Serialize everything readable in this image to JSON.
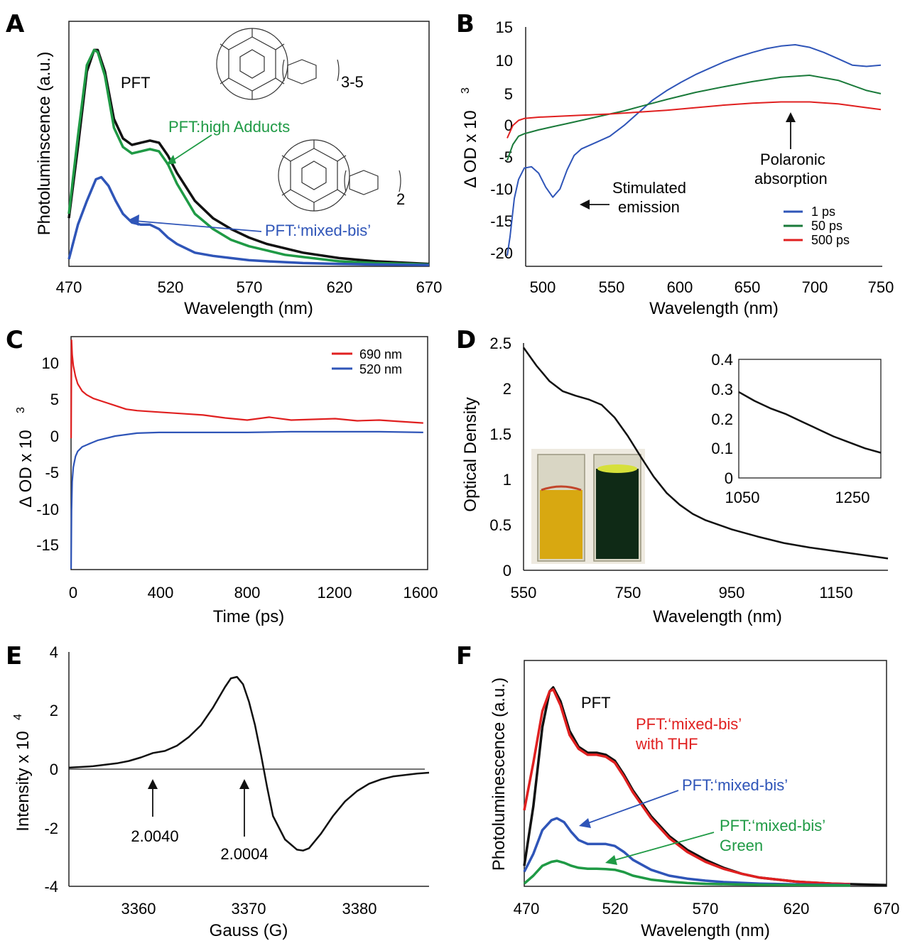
{
  "chart_data": [
    {
      "panel": "A",
      "type": "line",
      "xlabel": "Wavelength (nm)",
      "ylabel": "Photoluminscence (a.u.)",
      "xlim": [
        470,
        670
      ],
      "ylim": [
        0,
        1.1
      ],
      "xticks": [
        "470",
        "520",
        "570",
        "620",
        "670"
      ],
      "series": [
        {
          "name": "PFT",
          "color": "#111111",
          "x": [
            470,
            475,
            480,
            484,
            486,
            490,
            495,
            500,
            505,
            510,
            515,
            520,
            525,
            530,
            540,
            550,
            560,
            570,
            580,
            590,
            600,
            620,
            640,
            660,
            670
          ],
          "y": [
            0.22,
            0.55,
            0.9,
            1.0,
            1.0,
            0.9,
            0.68,
            0.59,
            0.56,
            0.57,
            0.58,
            0.57,
            0.51,
            0.43,
            0.3,
            0.22,
            0.17,
            0.13,
            0.1,
            0.08,
            0.06,
            0.035,
            0.02,
            0.012,
            0.008
          ]
        },
        {
          "name": "PFT:high Adducts",
          "color": "#1f9a45",
          "x": [
            470,
            475,
            480,
            484,
            486,
            490,
            495,
            500,
            505,
            510,
            515,
            520,
            525,
            530,
            540,
            550,
            560,
            570,
            580,
            590,
            600,
            620,
            640,
            660,
            670
          ],
          "y": [
            0.24,
            0.6,
            0.93,
            1.0,
            0.99,
            0.88,
            0.64,
            0.55,
            0.52,
            0.53,
            0.54,
            0.53,
            0.47,
            0.38,
            0.24,
            0.17,
            0.12,
            0.09,
            0.07,
            0.05,
            0.04,
            0.02,
            0.012,
            0.008,
            0.005
          ]
        },
        {
          "name": "PFT:'mixed-bis'",
          "color": "#2f55b8",
          "x": [
            470,
            475,
            480,
            485,
            488,
            492,
            496,
            500,
            505,
            510,
            515,
            520,
            525,
            530,
            540,
            550,
            560,
            570,
            580,
            600,
            620,
            640,
            670
          ],
          "y": [
            0.03,
            0.19,
            0.3,
            0.4,
            0.41,
            0.37,
            0.3,
            0.24,
            0.2,
            0.19,
            0.19,
            0.17,
            0.13,
            0.1,
            0.06,
            0.045,
            0.035,
            0.025,
            0.02,
            0.012,
            0.008,
            0.005,
            0.003
          ]
        }
      ],
      "annotations": [
        "PFT",
        "PFT:high Adducts",
        "PFT:‘mixed-bis’",
        "3-5",
        "2"
      ]
    },
    {
      "panel": "B",
      "type": "line",
      "xlabel": "Wavelength (nm)",
      "ylabel": "Δ OD x 10",
      "ylabel_superscript": "3",
      "xlim": [
        490,
        750
      ],
      "ylim": [
        -21,
        15
      ],
      "xticks": [
        "500",
        "550",
        "600",
        "650",
        "700",
        "750"
      ],
      "yticks": [
        "15",
        "10",
        "5",
        "0",
        "-5",
        "-10",
        "-15",
        "-20"
      ],
      "series": [
        {
          "name": "1 ps",
          "color": "#2f55b8",
          "x": [
            488,
            490,
            493,
            496,
            500,
            505,
            510,
            515,
            520,
            525,
            530,
            535,
            540,
            550,
            560,
            570,
            580,
            590,
            600,
            610,
            620,
            630,
            640,
            650,
            660,
            670,
            680,
            690,
            700,
            710,
            720,
            730,
            740,
            750
          ],
          "y": [
            -21,
            -18,
            -12,
            -9,
            -7.2,
            -7.0,
            -8.0,
            -10.2,
            -11.8,
            -10.5,
            -7.5,
            -5.2,
            -4.2,
            -3.2,
            -2.2,
            -0.5,
            1.5,
            3.5,
            5.0,
            6.3,
            7.5,
            8.5,
            9.5,
            10.3,
            11.0,
            11.6,
            12.0,
            12.2,
            11.8,
            11.0,
            10.0,
            9.0,
            8.8,
            9.0
          ]
        },
        {
          "name": "50 ps",
          "color": "#1a7a3a",
          "x": [
            488,
            492,
            496,
            500,
            505,
            510,
            520,
            530,
            540,
            550,
            560,
            570,
            580,
            590,
            600,
            620,
            640,
            660,
            680,
            700,
            720,
            740,
            750
          ],
          "y": [
            -6,
            -3.5,
            -2.2,
            -1.8,
            -1.5,
            -1.2,
            -0.7,
            -0.2,
            0.3,
            0.8,
            1.3,
            1.8,
            2.4,
            3.0,
            3.6,
            4.7,
            5.6,
            6.4,
            7.1,
            7.4,
            6.6,
            5.0,
            4.5
          ]
        },
        {
          "name": "500 ps",
          "color": "#e02020",
          "x": [
            488,
            492,
            496,
            500,
            510,
            520,
            540,
            560,
            580,
            600,
            620,
            640,
            660,
            680,
            700,
            720,
            740,
            750
          ],
          "y": [
            -2.5,
            -0.5,
            0.3,
            0.6,
            0.8,
            0.9,
            1.1,
            1.3,
            1.6,
            1.9,
            2.3,
            2.7,
            3.0,
            3.2,
            3.2,
            2.9,
            2.3,
            2.0
          ]
        }
      ],
      "legend": [
        "1 ps",
        "50 ps",
        "500 ps"
      ],
      "annotations": [
        "Stimulated",
        "emission",
        "Polaronic",
        "absorption"
      ]
    },
    {
      "panel": "C",
      "type": "line",
      "xlabel": "Time (ps)",
      "ylabel": "Δ OD x 10",
      "ylabel_superscript": "3",
      "xlim": [
        -10,
        1620
      ],
      "ylim": [
        -18,
        14
      ],
      "xticks": [
        "0",
        "400",
        "800",
        "1200",
        "1600"
      ],
      "yticks": [
        "10",
        "5",
        "0",
        "-5",
        "-10",
        "-15"
      ],
      "series": [
        {
          "name": "690 nm",
          "color": "#e02020",
          "x": [
            0,
            2,
            5,
            10,
            20,
            30,
            50,
            70,
            100,
            150,
            200,
            250,
            300,
            400,
            500,
            600,
            700,
            800,
            900,
            1000,
            1100,
            1200,
            1300,
            1400,
            1500,
            1600
          ],
          "y": [
            0,
            13.5,
            11.5,
            10.0,
            8.5,
            7.5,
            6.5,
            6.0,
            5.5,
            5.0,
            4.5,
            4.0,
            3.8,
            3.6,
            3.4,
            3.2,
            2.8,
            2.5,
            2.9,
            2.5,
            2.6,
            2.7,
            2.4,
            2.5,
            2.3,
            2.1
          ]
        },
        {
          "name": "520 nm",
          "color": "#2f55b8",
          "x": [
            0,
            2,
            5,
            10,
            20,
            30,
            50,
            80,
            120,
            200,
            300,
            400,
            600,
            800,
            1000,
            1200,
            1400,
            1600
          ],
          "y": [
            -18,
            -10,
            -6,
            -4,
            -2.5,
            -1.8,
            -1.2,
            -0.8,
            -0.3,
            0.3,
            0.7,
            0.8,
            0.8,
            0.8,
            0.9,
            0.9,
            0.9,
            0.8
          ]
        }
      ],
      "legend": [
        "690 nm",
        "520 nm"
      ]
    },
    {
      "panel": "D",
      "type": "line",
      "xlabel": "Wavelength (nm)",
      "ylabel": "Optical Density",
      "xlim": [
        550,
        1250
      ],
      "ylim": [
        0,
        2.5
      ],
      "xticks": [
        "550",
        "750",
        "950",
        "1150"
      ],
      "yticks": [
        "2.5",
        "2",
        "1.5",
        "1",
        "0.5",
        "0"
      ],
      "series": [
        {
          "name": "",
          "color": "#111111",
          "x": [
            550,
            575,
            600,
            625,
            650,
            675,
            700,
            725,
            750,
            775,
            800,
            825,
            850,
            875,
            900,
            950,
            1000,
            1050,
            1100,
            1150,
            1200,
            1250
          ],
          "y": [
            2.45,
            2.25,
            2.08,
            1.97,
            1.92,
            1.88,
            1.82,
            1.68,
            1.48,
            1.25,
            1.03,
            0.85,
            0.72,
            0.62,
            0.55,
            0.45,
            0.37,
            0.3,
            0.25,
            0.21,
            0.17,
            0.13
          ]
        }
      ],
      "inset": {
        "xlim": [
          1050,
          1320
        ],
        "ylim": [
          0,
          0.4
        ],
        "xticks": [
          "1050",
          "1250"
        ],
        "yticks": [
          "0.4",
          "0.3",
          "0.2",
          "0.1",
          "0"
        ],
        "x": [
          1050,
          1080,
          1110,
          1140,
          1170,
          1200,
          1230,
          1260,
          1290,
          1320
        ],
        "y": [
          0.29,
          0.26,
          0.235,
          0.215,
          0.19,
          0.165,
          0.14,
          0.12,
          0.1,
          0.085
        ]
      }
    },
    {
      "panel": "E",
      "type": "line",
      "xlabel": "Gauss (G)",
      "ylabel": "Intensity x 10",
      "ylabel_superscript": "4",
      "xlim": [
        3355,
        3385
      ],
      "ylim": [
        -4,
        4
      ],
      "xticks": [
        "3360",
        "3370",
        "3380"
      ],
      "yticks": [
        "4",
        "2",
        "0",
        "-2",
        "-4"
      ],
      "series": [
        {
          "name": "",
          "color": "#111111",
          "x": [
            3355,
            3357,
            3359,
            3360,
            3361,
            3362,
            3363,
            3364,
            3365,
            3366,
            3367,
            3368,
            3368.5,
            3369,
            3369.5,
            3370,
            3370.5,
            3371,
            3371.5,
            3372,
            3373,
            3374,
            3374.5,
            3375,
            3376,
            3377,
            3378,
            3379,
            3380,
            3381,
            3382,
            3383,
            3384,
            3385
          ],
          "y": [
            0.05,
            0.1,
            0.2,
            0.28,
            0.4,
            0.55,
            0.62,
            0.8,
            1.1,
            1.5,
            2.1,
            2.8,
            3.1,
            3.15,
            2.9,
            2.3,
            1.5,
            0.5,
            -0.6,
            -1.6,
            -2.4,
            -2.75,
            -2.78,
            -2.7,
            -2.2,
            -1.6,
            -1.1,
            -0.75,
            -0.5,
            -0.35,
            -0.25,
            -0.2,
            -0.15,
            -0.12
          ]
        }
      ],
      "annotations": [
        "2.0040",
        "2.0004"
      ]
    },
    {
      "panel": "F",
      "type": "line",
      "xlabel": "Wavelength (nm)",
      "ylabel": "Photoluminescence (a.u.)",
      "xlim": [
        470,
        670
      ],
      "ylim": [
        0,
        1.1
      ],
      "xticks": [
        "470",
        "520",
        "570",
        "620",
        "670"
      ],
      "series": [
        {
          "name": "PFT",
          "color": "#111111",
          "x": [
            470,
            475,
            480,
            484,
            486,
            490,
            495,
            500,
            505,
            510,
            515,
            520,
            525,
            530,
            540,
            550,
            560,
            570,
            580,
            590,
            600,
            620,
            640,
            660,
            670
          ],
          "y": [
            0.1,
            0.4,
            0.8,
            0.98,
            1.0,
            0.93,
            0.78,
            0.7,
            0.67,
            0.67,
            0.66,
            0.63,
            0.56,
            0.48,
            0.35,
            0.25,
            0.18,
            0.13,
            0.09,
            0.06,
            0.04,
            0.02,
            0.01,
            0.005,
            0.003
          ]
        },
        {
          "name": "PFT:'mixed-bis' with THF",
          "color": "#e02020",
          "x": [
            470,
            475,
            480,
            484,
            486,
            490,
            495,
            500,
            505,
            510,
            515,
            520,
            525,
            530,
            540,
            550,
            560,
            570,
            580,
            590,
            600,
            620,
            640,
            650
          ],
          "y": [
            0.38,
            0.62,
            0.88,
            0.98,
            0.99,
            0.91,
            0.76,
            0.69,
            0.66,
            0.66,
            0.65,
            0.62,
            0.55,
            0.47,
            0.34,
            0.24,
            0.17,
            0.12,
            0.085,
            0.06,
            0.04,
            0.02,
            0.01,
            0.007
          ]
        },
        {
          "name": "PFT:'mixed-bis'",
          "color": "#2f55b8",
          "x": [
            470,
            475,
            480,
            485,
            488,
            492,
            496,
            500,
            505,
            510,
            515,
            520,
            525,
            530,
            540,
            550,
            560,
            570,
            580,
            600,
            620,
            640,
            650
          ],
          "y": [
            0.07,
            0.16,
            0.28,
            0.33,
            0.34,
            0.32,
            0.27,
            0.23,
            0.21,
            0.21,
            0.21,
            0.2,
            0.17,
            0.13,
            0.08,
            0.05,
            0.035,
            0.025,
            0.018,
            0.01,
            0.006,
            0.004,
            0.003
          ]
        },
        {
          "name": "PFT:'mixed-bis' Green",
          "color": "#1f9a45",
          "x": [
            470,
            475,
            480,
            485,
            488,
            492,
            496,
            500,
            505,
            510,
            515,
            520,
            525,
            530,
            540,
            550,
            560,
            570,
            600,
            630,
            650
          ],
          "y": [
            0.01,
            0.05,
            0.1,
            0.12,
            0.125,
            0.115,
            0.1,
            0.09,
            0.085,
            0.085,
            0.083,
            0.08,
            0.068,
            0.05,
            0.03,
            0.02,
            0.013,
            0.009,
            0.004,
            0.002,
            0.001
          ]
        }
      ],
      "annotations": [
        "PFT",
        "PFT:‘mixed-bis’",
        "with THF",
        "PFT:‘mixed-bis’",
        "PFT:‘mixed-bis’",
        "Green"
      ]
    }
  ]
}
